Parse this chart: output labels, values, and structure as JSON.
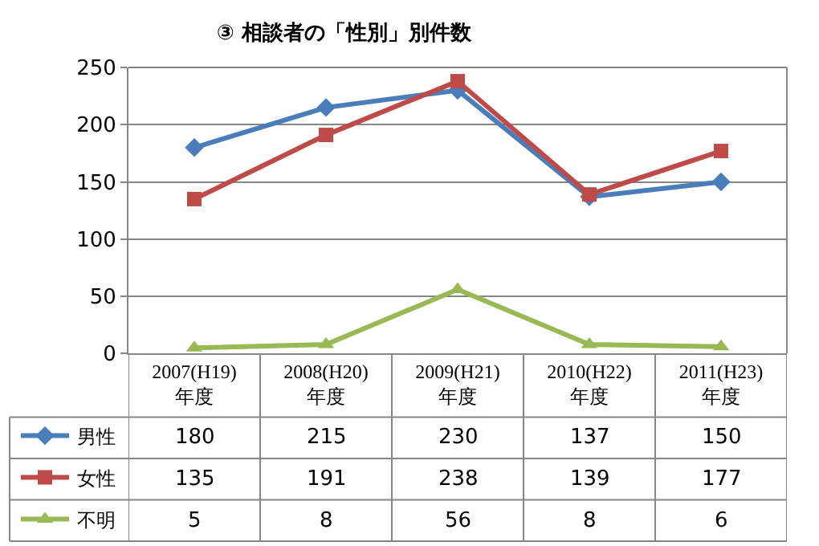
{
  "chart_data": {
    "type": "line",
    "title": "③ 相談者の「性別」別件数",
    "categories": [
      "2007(H19)\n年度",
      "2008(H20)\n年度",
      "2009(H21)\n年度",
      "2010(H22)\n年度",
      "2011(H23)\n年度"
    ],
    "series": [
      {
        "name": "男性",
        "color": "#4a7ebb",
        "marker": "diamond",
        "values": [
          180,
          215,
          230,
          137,
          150
        ]
      },
      {
        "name": "女性",
        "color": "#be4b48",
        "marker": "square",
        "values": [
          135,
          191,
          238,
          139,
          177
        ]
      },
      {
        "name": "不明",
        "color": "#98b954",
        "marker": "triangle",
        "values": [
          5,
          8,
          56,
          8,
          6
        ]
      }
    ],
    "ylim": [
      0,
      250
    ],
    "yticks": [
      0,
      50,
      100,
      150,
      200,
      250
    ],
    "grid": "y",
    "legend": "bottom left",
    "data_labels": true,
    "line_style": "solid"
  }
}
